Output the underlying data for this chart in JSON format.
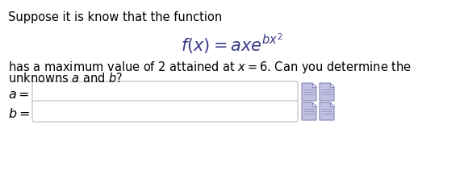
{
  "bg_color": "#ffffff",
  "text_color": "#000000",
  "formula_color": "#4a4a8a",
  "line1": "Suppose it is know that the function",
  "line3_part1": "has a maximum value of 2 attained at ",
  "line3_part2": " = 6. Can you determine the",
  "line4": "unknowns ",
  "font_size_text": 10.5,
  "font_size_formula": 15,
  "icon_face": "#c0c0e0",
  "icon_edge": "#8888bb"
}
